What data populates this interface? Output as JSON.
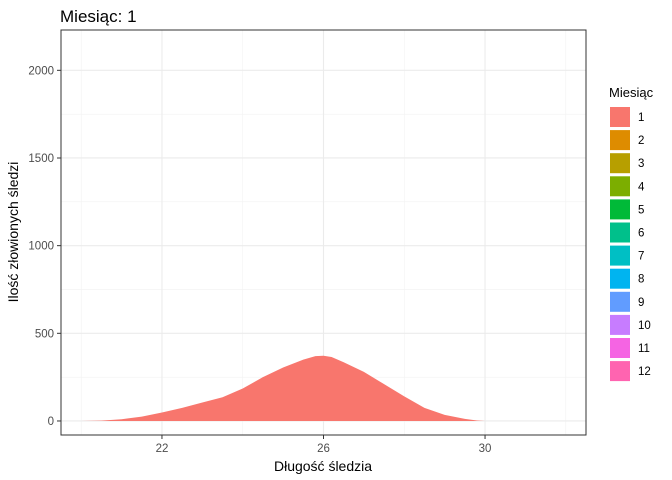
{
  "chart_data": {
    "type": "area",
    "title": "Miesiąc: 1",
    "xlabel": "Długość śledzia",
    "ylabel": "Ilość złowionych śledzi",
    "xlim": [
      19.5,
      32.5
    ],
    "ylim": [
      -80,
      2230
    ],
    "x_ticks": [
      22,
      26,
      30
    ],
    "y_ticks": [
      0,
      500,
      1000,
      1500,
      2000
    ],
    "x_minor": [
      20,
      24,
      28,
      32
    ],
    "y_minor": [
      250,
      750,
      1250,
      1750
    ],
    "grid": true,
    "legend_position": "right",
    "legend_title": "Miesiąc",
    "legend": [
      {
        "label": "1",
        "color": "#F8766D"
      },
      {
        "label": "2",
        "color": "#DE8C00"
      },
      {
        "label": "3",
        "color": "#B79F00"
      },
      {
        "label": "4",
        "color": "#7CAE00"
      },
      {
        "label": "5",
        "color": "#00BA38"
      },
      {
        "label": "6",
        "color": "#00C08B"
      },
      {
        "label": "7",
        "color": "#00BFC4"
      },
      {
        "label": "8",
        "color": "#00B4F0"
      },
      {
        "label": "9",
        "color": "#619CFF"
      },
      {
        "label": "10",
        "color": "#C77CFF"
      },
      {
        "label": "11",
        "color": "#F564E3"
      },
      {
        "label": "12",
        "color": "#FF64B0"
      }
    ],
    "series": [
      {
        "color": "#F8766D",
        "x": [
          20.0,
          20.5,
          21.0,
          21.5,
          22.0,
          22.5,
          23.0,
          23.5,
          24.0,
          24.5,
          25.0,
          25.5,
          25.8,
          26.0,
          26.2,
          26.5,
          27.0,
          27.5,
          28.0,
          28.5,
          29.0,
          29.5,
          29.8,
          30.0,
          31.0
        ],
        "y": [
          0,
          2,
          10,
          25,
          48,
          75,
          105,
          135,
          185,
          250,
          305,
          350,
          370,
          372,
          365,
          335,
          280,
          210,
          140,
          75,
          35,
          12,
          3,
          0,
          0
        ]
      }
    ]
  }
}
